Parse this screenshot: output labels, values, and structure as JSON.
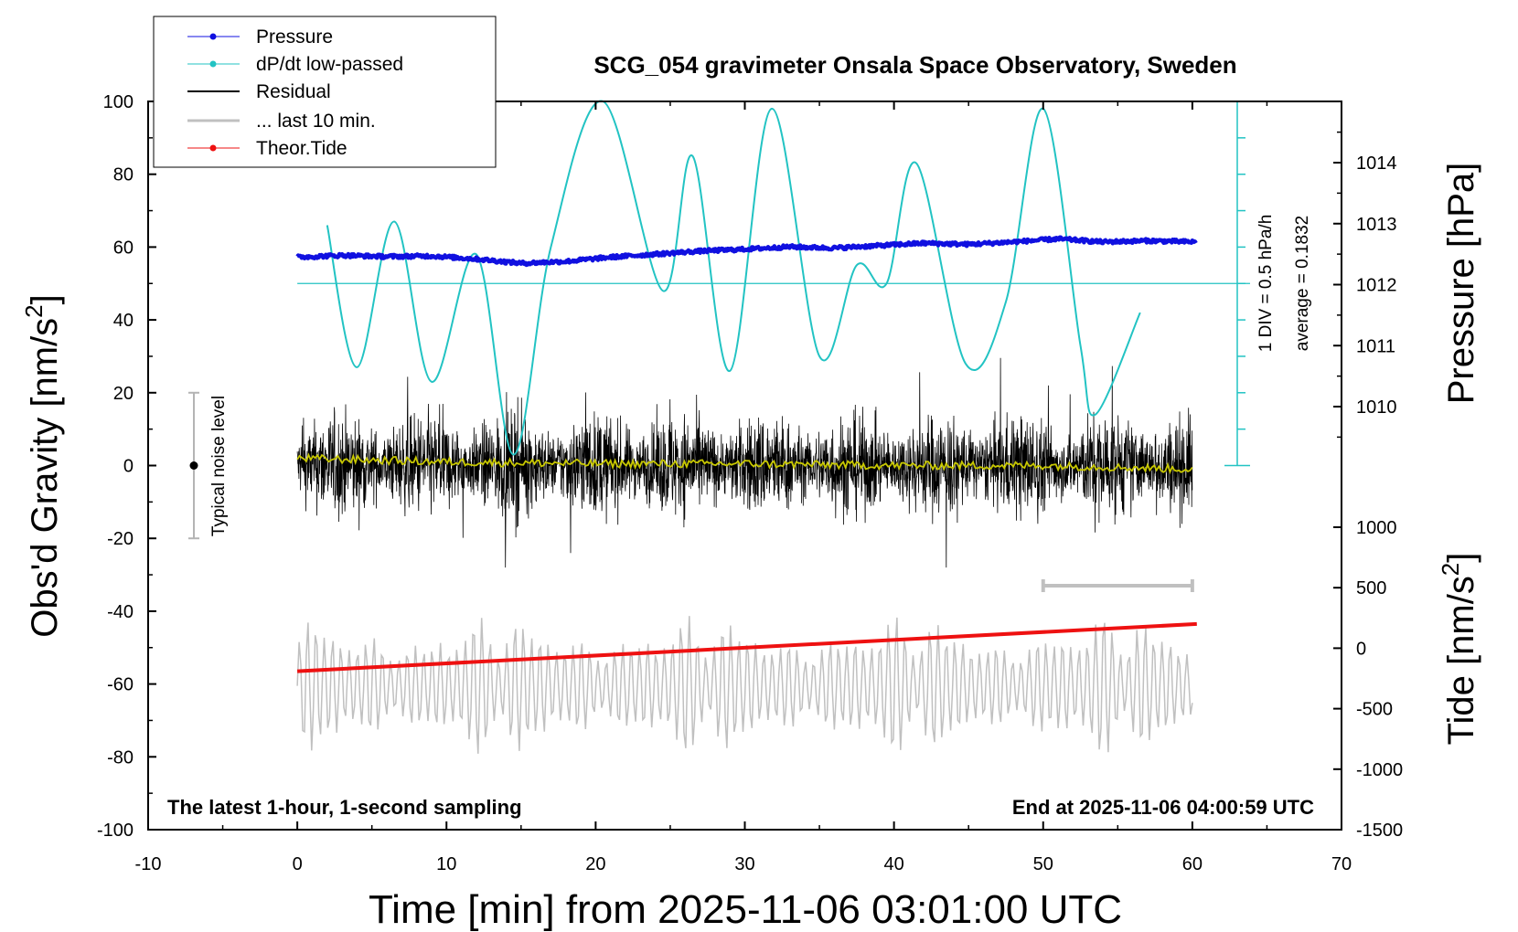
{
  "chart_data": {
    "type": "line",
    "title": "SCG_054 gravimeter Onsala Space Observatory, Sweden",
    "xlabel": "Time [min] from 2025-11-06 03:01:00 UTC",
    "ylabel_left_main": "Obs'd Gravity [nm/s",
    "ylabel_left_sup": "2",
    "ylabel_left_close": "]",
    "ylabel_right_pressure": "Pressure [hPa]",
    "ylabel_right_tide_main": "Tide [nm/s",
    "ylabel_right_tide_sup": "2",
    "ylabel_right_tide_close": "]",
    "xlim": [
      -10,
      70
    ],
    "ylim_gravity": [
      -100,
      100
    ],
    "x_ticks": [
      "-10",
      "0",
      "10",
      "20",
      "30",
      "40",
      "50",
      "60",
      "70"
    ],
    "y_ticks_gravity": [
      "100",
      "80",
      "60",
      "40",
      "20",
      "0",
      "-20",
      "-40",
      "-60",
      "-80",
      "-100"
    ],
    "y_ticks_pressure": [
      "1014",
      "1013",
      "1012",
      "1011",
      "1010"
    ],
    "pressure_range": [
      1009.3,
      1015.0
    ],
    "y_ticks_tide": [
      "1000",
      "500",
      "0",
      "-500",
      "-1000",
      "-1500"
    ],
    "tide_range": [
      -1500,
      1000
    ],
    "annotation_left": "The latest 1-hour, 1-second sampling",
    "annotation_right": "End at 2025-11-06 04:00:59 UTC",
    "noise_label": "Typical noise level",
    "noise_level_range": [
      -20,
      20
    ],
    "dpdt_scale_label": "1 DIV = 0.5 hPa/h",
    "dpdt_average_label": "average = 0.1832",
    "dpdt_zero_gravity_equiv": 50,
    "last_10min_x_range": [
      50,
      60
    ],
    "legend": [
      "Pressure",
      "dP/dt low-passed",
      "Residual",
      "... last 10 min.",
      "Theor.Tide"
    ],
    "series": [
      {
        "name": "Pressure",
        "unit": "hPa",
        "x": [
          0,
          3,
          6,
          9,
          12,
          15,
          18,
          21,
          24,
          27,
          30,
          33,
          36,
          39,
          42,
          45,
          48,
          51,
          54,
          57,
          60.3
        ],
        "values": [
          1012.45,
          1012.48,
          1012.46,
          1012.47,
          1012.42,
          1012.35,
          1012.38,
          1012.45,
          1012.5,
          1012.55,
          1012.58,
          1012.62,
          1012.6,
          1012.64,
          1012.68,
          1012.66,
          1012.7,
          1012.75,
          1012.7,
          1012.72,
          1012.7
        ]
      },
      {
        "name": "dP/dt low-passed",
        "unit": "gravity-axis units",
        "x": [
          2,
          4,
          6.5,
          9,
          12,
          14.5,
          17,
          20.5,
          24.5,
          26.5,
          29,
          31.8,
          35,
          37.5,
          39.5,
          41.5,
          44.8,
          47.5,
          50,
          52.5,
          53.5,
          56.5
        ],
        "values": [
          66,
          27,
          67,
          23,
          58,
          3,
          60,
          100,
          48,
          85,
          26,
          98,
          30,
          55,
          50,
          83,
          28,
          45,
          98,
          33,
          14,
          42
        ]
      },
      {
        "name": "Residual",
        "unit": "nm/s2",
        "x_range": [
          0,
          60
        ],
        "envelope": [
          -28,
          32
        ]
      },
      {
        "name": "Running mean",
        "x": [
          0,
          10,
          20,
          30,
          40,
          50,
          60
        ],
        "values": [
          2,
          1,
          0.5,
          0.5,
          0,
          0,
          -1
        ]
      },
      {
        "name": "... last 10 min.",
        "unit": "nm/s2 (repeated pattern)",
        "x_range": [
          0,
          60
        ],
        "values_range": [
          -81,
          -40
        ]
      },
      {
        "name": "Theor.Tide",
        "unit": "nm/s2",
        "x": [
          0,
          60.3
        ],
        "values": [
          -190,
          200
        ]
      }
    ],
    "colors": {
      "pressure": "#1010e0",
      "dpdt": "#22c3c3",
      "residual": "#000000",
      "last10": "#c0c0c0",
      "tide": "#ee1111",
      "mean": "#c8c800",
      "noise_bar": "#b4b4b4"
    }
  }
}
